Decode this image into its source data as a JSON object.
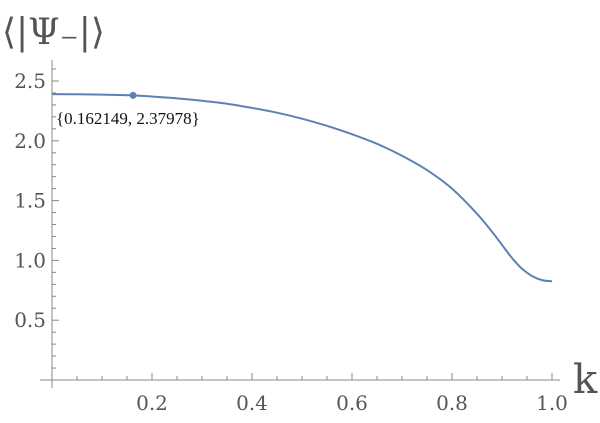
{
  "chart_data": {
    "type": "line",
    "xlabel": "k",
    "ylabel": "⟨|Ψ₋|⟩",
    "xlim": [
      0,
      1.0
    ],
    "ylim": [
      0,
      2.6
    ],
    "x_ticks": [
      "0.2",
      "0.4",
      "0.6",
      "0.8",
      "1.0"
    ],
    "y_ticks": [
      "0.5",
      "1.0",
      "1.5",
      "2.0",
      "2.5"
    ],
    "series": [
      {
        "x": [
          0,
          0.05,
          0.1,
          0.162149,
          0.2,
          0.25,
          0.3,
          0.35,
          0.4,
          0.45,
          0.5,
          0.55,
          0.6,
          0.65,
          0.7,
          0.75,
          0.8,
          0.85,
          0.88,
          0.9,
          0.92,
          0.94,
          0.96,
          0.98,
          1.0
        ],
        "y": [
          2.39,
          2.389,
          2.386,
          2.37978,
          2.37,
          2.355,
          2.335,
          2.31,
          2.275,
          2.235,
          2.185,
          2.125,
          2.055,
          1.975,
          1.875,
          1.755,
          1.6,
          1.39,
          1.24,
          1.13,
          1.02,
          0.93,
          0.87,
          0.835,
          0.825
        ],
        "color": "#5e81b5"
      }
    ],
    "marked_point": {
      "x": 0.162149,
      "y": 2.37978,
      "label": "{0.162149, 2.37978}"
    },
    "grid": false
  }
}
